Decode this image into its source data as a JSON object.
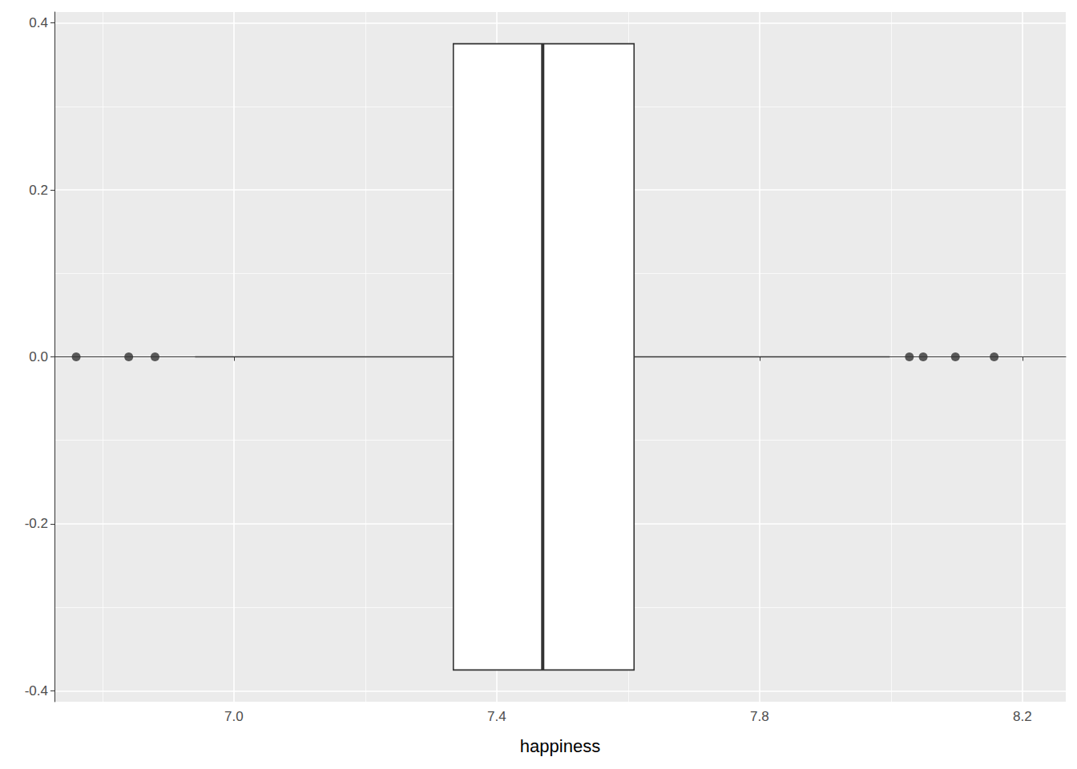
{
  "chart_data": {
    "type": "boxplot",
    "x_label": "happiness",
    "y": 0,
    "stats": {
      "min": 6.941,
      "q1": 7.334,
      "median": 7.47,
      "q3": 7.609,
      "max": 7.998
    },
    "outliers": [
      6.76,
      6.84,
      6.88,
      8.028,
      8.049,
      8.098,
      8.157
    ],
    "xlim": [
      6.727,
      8.266
    ],
    "xticks": [
      {
        "value": 7,
        "label": "7.0"
      },
      7.4,
      7.8,
      8.2
    ],
    "ylim": [
      -0.413,
      0.413
    ],
    "yticks": [
      -0.4,
      -0.2,
      {
        "value": 0,
        "label": "0.0"
      },
      0.2,
      0.4
    ],
    "grid": true
  }
}
